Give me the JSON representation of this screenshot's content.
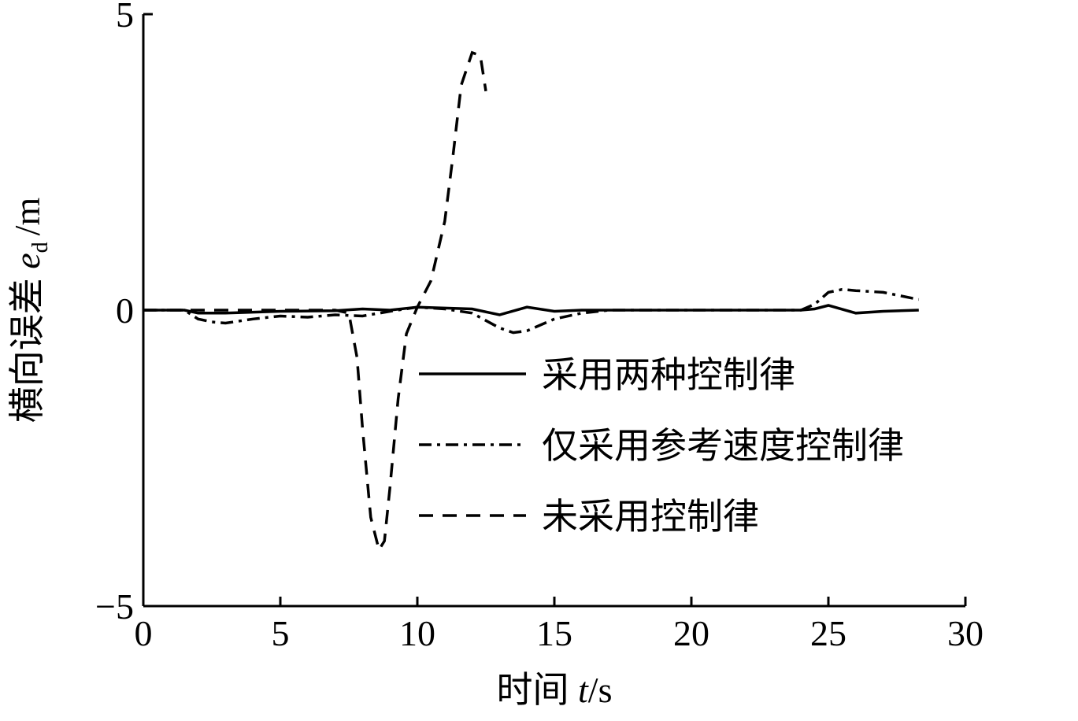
{
  "chart_data": {
    "type": "line",
    "xlabel": {
      "text": "时间",
      "var": "t",
      "unit": "/s"
    },
    "ylabel": {
      "text": "横向误差",
      "var": "e",
      "sub": "d",
      "unit": "/m"
    },
    "xlim": [
      0,
      30
    ],
    "ylim": [
      -5,
      5
    ],
    "xticks": [
      0,
      5,
      10,
      15,
      20,
      25,
      30
    ],
    "yticks": [
      {
        "value": -5,
        "label": "−5"
      },
      0,
      5
    ],
    "series": [
      {
        "name": "采用两种控制律",
        "color": "#000000",
        "style": "solid",
        "x": [
          0,
          1.5,
          2,
          3,
          5,
          7,
          8,
          9,
          10,
          12,
          13,
          14,
          15,
          16,
          24,
          24.5,
          25,
          26,
          27,
          28.3
        ],
        "values": [
          0,
          0,
          -0.05,
          -0.05,
          -0.02,
          -0.01,
          0.02,
          0,
          0.05,
          0.02,
          -0.08,
          0.05,
          -0.02,
          0,
          0,
          0.02,
          0.08,
          -0.05,
          -0.02,
          0
        ]
      },
      {
        "name": "仅采用参考速度控制律",
        "color": "#000000",
        "style": "dashdot",
        "x": [
          0,
          1.5,
          2,
          2.5,
          3,
          4,
          5,
          6,
          7,
          8,
          9,
          10,
          11,
          12,
          13,
          13.5,
          14,
          15,
          16,
          17,
          24,
          24.5,
          25,
          25.5,
          26,
          27,
          28.3
        ],
        "values": [
          0,
          0,
          -0.15,
          -0.2,
          -0.22,
          -0.15,
          -0.1,
          -0.12,
          -0.08,
          -0.1,
          -0.02,
          0.05,
          0.02,
          -0.05,
          -0.3,
          -0.38,
          -0.35,
          -0.15,
          -0.05,
          0,
          0,
          0.1,
          0.3,
          0.35,
          0.33,
          0.3,
          0.18
        ]
      },
      {
        "name": "未采用控制律",
        "color": "#000000",
        "style": "dashed",
        "x": [
          0,
          7,
          7.5,
          7.8,
          8,
          8.3,
          8.6,
          8.8,
          9,
          9.3,
          9.6,
          10,
          10.5,
          11,
          11.3,
          11.6,
          12,
          12.3,
          12.5
        ],
        "values": [
          0,
          0,
          -0.05,
          -0.8,
          -2,
          -3.5,
          -4.05,
          -3.9,
          -3,
          -1.5,
          -0.4,
          0.05,
          0.5,
          1.5,
          2.6,
          3.8,
          4.35,
          4.3,
          3.7
        ]
      }
    ]
  }
}
